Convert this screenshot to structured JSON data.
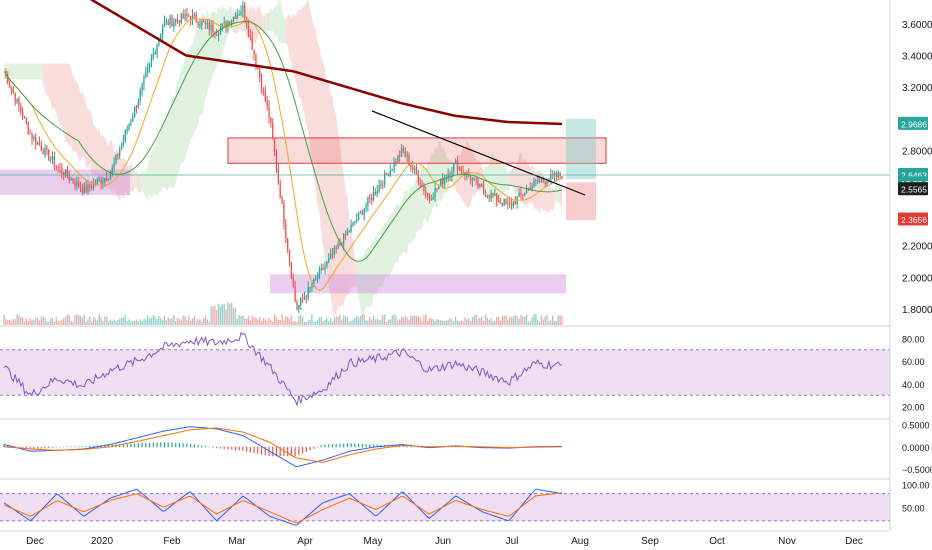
{
  "colors": {
    "up": "#26a69a",
    "down": "#ef5350",
    "price_line": "#26a69a",
    "ma_long": "#8b0000",
    "ma_green": "#43a047",
    "ma_orange": "#f5a623",
    "cloud_bull": "#a5d6a7",
    "cloud_bear": "#ef9a9a",
    "rsi_band": "#e1bee7",
    "rsi_line": "#7e57c2",
    "macd_line": "#2962ff",
    "signal_line": "#ff6d00",
    "stoch_k": "#2962ff",
    "stoch_d": "#ff6d00",
    "trendline": "#000000",
    "rect_resistance": "#e53935",
    "rect_support": "#ce93d8"
  },
  "price_axis": {
    "ticks": [
      "3.6000",
      "3.4000",
      "3.2000",
      "2.8000",
      "2.2000",
      "2.0000",
      "1.8000"
    ]
  },
  "price_labels": [
    {
      "text": "2.9686",
      "value": 2.9686,
      "bg": "#26a69a",
      "fg": "#ffffff"
    },
    {
      "text": "2.6463",
      "value": 2.6463,
      "bg": "#26a69a",
      "fg": "#ffffff"
    },
    {
      "text": "13:08:38",
      "value": 2.593,
      "bg": "#26a69a",
      "fg": "#ffffff"
    },
    {
      "text": "2.5565",
      "value": 2.5565,
      "bg": "#1e1e1e",
      "fg": "#ffffff"
    },
    {
      "text": "2.3656",
      "value": 2.3656,
      "bg": "#e53935",
      "fg": "#ffffff"
    }
  ],
  "rsi_axis": {
    "ticks": [
      "80.00",
      "60.00",
      "40.00",
      "20.00"
    ]
  },
  "macd_axis": {
    "ticks": [
      "0.5000",
      "0.0000",
      "−0.5000"
    ]
  },
  "stoch_axis": {
    "ticks": [
      "100.00",
      "50.00"
    ]
  },
  "time_axis": {
    "labels": [
      "Dec",
      "2020",
      "Feb",
      "Mar",
      "Apr",
      "May",
      "Jun",
      "Jul",
      "Aug",
      "Sep",
      "Oct",
      "Nov",
      "Dec"
    ]
  },
  "chart_data": {
    "type": "candlestick",
    "instrument_panels": [
      "price",
      "rsi",
      "macd",
      "stochastic"
    ],
    "x_range": [
      "Nov 2019",
      "Dec 2020"
    ],
    "price_ylim": [
      1.7,
      3.75
    ],
    "close_series": {
      "dates": [
        "Nov 25",
        "Dec 5",
        "Dec 15",
        "Dec 25",
        "Jan 5",
        "Jan 15",
        "Jan 25",
        "Feb 5",
        "Feb 15",
        "Feb 25",
        "Mar 5",
        "Mar 12",
        "Mar 20",
        "Apr 1",
        "Apr 15",
        "May 1",
        "May 15",
        "Jun 1",
        "Jun 15",
        "Jul 1",
        "Jul 15",
        "Jul 24"
      ],
      "values": [
        3.3,
        2.9,
        2.7,
        2.55,
        2.65,
        3.1,
        3.6,
        3.65,
        3.55,
        3.7,
        3.0,
        1.8,
        2.05,
        2.3,
        2.55,
        2.8,
        2.5,
        2.72,
        2.55,
        2.45,
        2.6,
        2.6463
      ]
    },
    "last_price": 2.6463,
    "resistance_zone": [
      2.72,
      2.88
    ],
    "support_zone": [
      1.9,
      2.02
    ],
    "ma_long_end": 2.9686,
    "rsi": {
      "ylim": [
        10,
        90
      ],
      "band": [
        30,
        70
      ],
      "values": [
        55,
        30,
        45,
        38,
        52,
        60,
        72,
        78,
        76,
        82,
        55,
        25,
        35,
        58,
        62,
        68,
        52,
        58,
        50,
        42,
        58,
        56
      ]
    },
    "macd": {
      "ylim": [
        -0.7,
        0.6
      ],
      "macd_values": [
        0.05,
        -0.1,
        -0.08,
        -0.05,
        0.05,
        0.2,
        0.35,
        0.45,
        0.4,
        0.25,
        -0.1,
        -0.45,
        -0.3,
        -0.1,
        0.0,
        0.05,
        -0.02,
        0.02,
        -0.02,
        -0.03,
        0.0,
        0.01
      ],
      "signal_values": [
        0.0,
        -0.05,
        -0.08,
        -0.06,
        0.0,
        0.12,
        0.25,
        0.38,
        0.42,
        0.33,
        0.1,
        -0.25,
        -0.35,
        -0.18,
        -0.05,
        0.03,
        0.0,
        0.01,
        0.0,
        -0.02,
        -0.01,
        0.0
      ]
    },
    "stochastic": {
      "ylim": [
        0,
        110
      ],
      "band": [
        20,
        80
      ],
      "k_values": [
        60,
        20,
        80,
        30,
        70,
        90,
        40,
        85,
        20,
        75,
        30,
        10,
        60,
        80,
        30,
        85,
        25,
        75,
        40,
        20,
        90,
        80
      ],
      "d_values": [
        55,
        30,
        65,
        40,
        65,
        80,
        50,
        75,
        35,
        65,
        40,
        15,
        45,
        70,
        45,
        75,
        35,
        65,
        45,
        30,
        75,
        82
      ]
    }
  }
}
